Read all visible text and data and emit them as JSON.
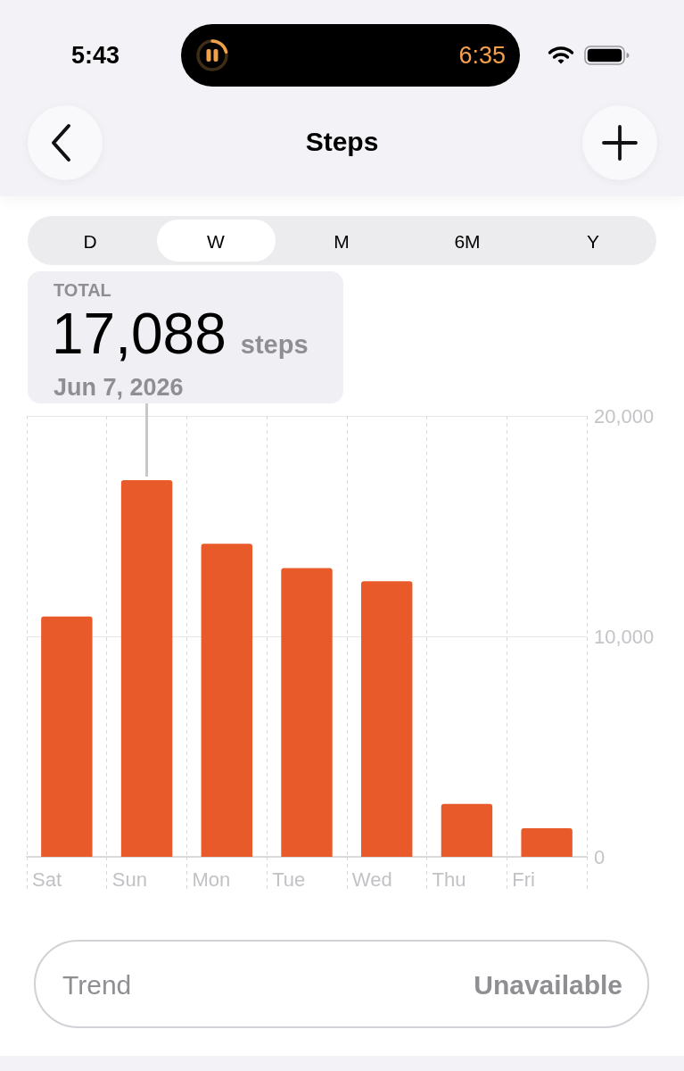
{
  "chart_data": {
    "type": "bar",
    "title": "Steps",
    "categories": [
      "Sat",
      "Sun",
      "Mon",
      "Tue",
      "Wed",
      "Thu",
      "Fri"
    ],
    "values": [
      10900,
      17088,
      14200,
      13100,
      12500,
      2400,
      1300
    ],
    "color": "#e95a2b",
    "ylim": [
      0,
      20000
    ],
    "yticks": [
      0,
      {
        "value": 10000,
        "label": "10,000"
      },
      {
        "value": 20000,
        "label": "20,000"
      }
    ],
    "grid": true,
    "annotations": [
      "5:43",
      "6:35",
      "D",
      "W",
      "M",
      "6M",
      "Y",
      "TOTAL",
      {
        "text": "17,088",
        "x": "Sun",
        "y": 17088
      },
      "steps",
      "Jun 7, 2026",
      "Trend",
      "Unavailable"
    ]
  }
}
